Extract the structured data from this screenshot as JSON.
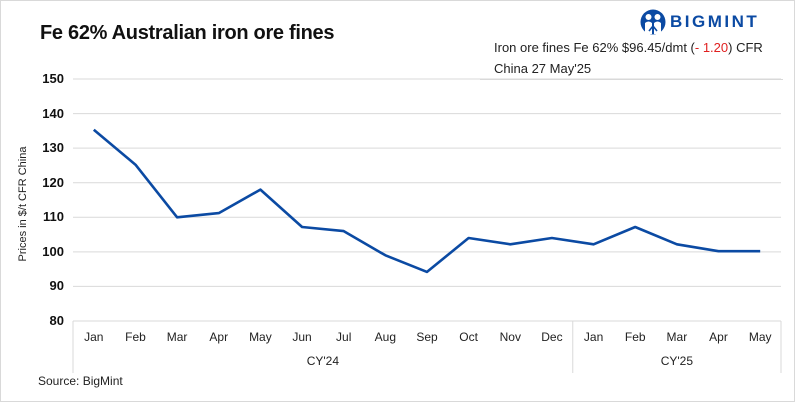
{
  "title": "Fe 62% Australian iron ore fines",
  "logo": {
    "icon": "bigmint-people-icon",
    "text": "BIGMINT",
    "color": "#0b4aa3"
  },
  "note": {
    "prefix": "Iron ore fines Fe 62% $96.45/dmt (",
    "change": "- 1.20",
    "suffix": ") CFR",
    "line2": "China 27 May'25",
    "change_color": "#e02020"
  },
  "source": "Source: BigMint",
  "chart_data": {
    "type": "line",
    "title": "Fe 62% Australian iron ore fines",
    "xlabel": "",
    "ylabel": "Prices in $/t CFR China",
    "ylim": [
      80,
      150
    ],
    "yticks": [
      80,
      90,
      100,
      110,
      120,
      130,
      140,
      150
    ],
    "grid": true,
    "categories": [
      "Jan",
      "Feb",
      "Mar",
      "Apr",
      "May",
      "Jun",
      "Jul",
      "Aug",
      "Sep",
      "Oct",
      "Nov",
      "Dec",
      "Jan",
      "Feb",
      "Mar",
      "Apr",
      "May"
    ],
    "groups": [
      {
        "label": "CY'24",
        "start": 0,
        "end": 11
      },
      {
        "label": "CY'25",
        "start": 12,
        "end": 16
      }
    ],
    "series": [
      {
        "name": "Fe 62% Australian iron ore fines",
        "color": "#0b4aa3",
        "values": [
          135.3,
          125.2,
          110.0,
          111.2,
          118.0,
          107.2,
          106.0,
          99.0,
          94.2,
          104.0,
          102.2,
          104.0,
          102.2,
          107.2,
          102.2,
          100.2,
          100.2
        ]
      }
    ],
    "legend": "none"
  }
}
